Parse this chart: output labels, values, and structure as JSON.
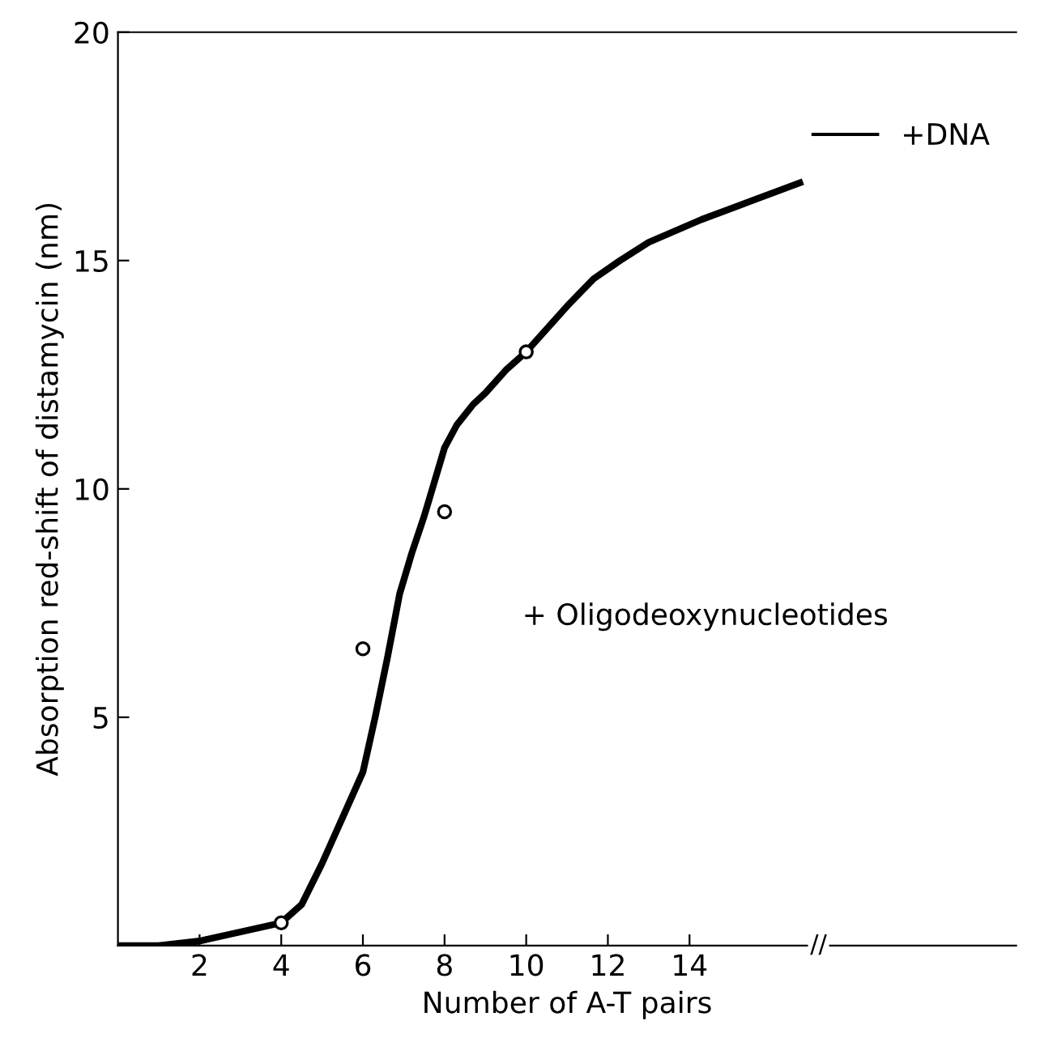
{
  "chart_data": {
    "type": "line",
    "xlabel": "Number of A-T pairs",
    "ylabel": "Absorption red-shift of distamycin (nm)",
    "xlim": [
      0,
      22
    ],
    "ylim": [
      0,
      20
    ],
    "xticks": [
      2,
      4,
      6,
      8,
      10,
      12,
      14
    ],
    "yticks": [
      5,
      10,
      15,
      20
    ],
    "grid": false,
    "legend": "top right",
    "series": [
      {
        "name": "+DNA",
        "color": "#000000",
        "marker": "none",
        "line_style": "solid",
        "x": [
          0,
          1,
          2,
          3,
          4,
          4.5,
          5,
          5.5,
          6,
          6.3,
          6.6,
          6.9,
          7.2,
          7.5,
          7.7,
          8,
          8.3,
          8.7,
          9,
          9.5,
          10,
          11,
          11.65,
          12.3,
          13,
          14.3,
          15.5,
          16.7
        ],
        "values": [
          0,
          0,
          0.1,
          0.3,
          0.5,
          0.9,
          1.8,
          2.8,
          3.8,
          5.0,
          6.3,
          7.7,
          8.6,
          9.4,
          10.0,
          10.9,
          11.4,
          11.85,
          12.1,
          12.6,
          13.0,
          14.0,
          14.6,
          15.0,
          15.4,
          15.9,
          16.3,
          16.7
        ]
      },
      {
        "name": "+ Oligodeoxynucleotides",
        "type": "scatter",
        "color": "#000000",
        "marker": "circle",
        "x": [
          4,
          6,
          8,
          10
        ],
        "values": [
          0.5,
          6.5,
          9.5,
          13
        ]
      }
    ],
    "annotations": [
      "//"
    ]
  }
}
